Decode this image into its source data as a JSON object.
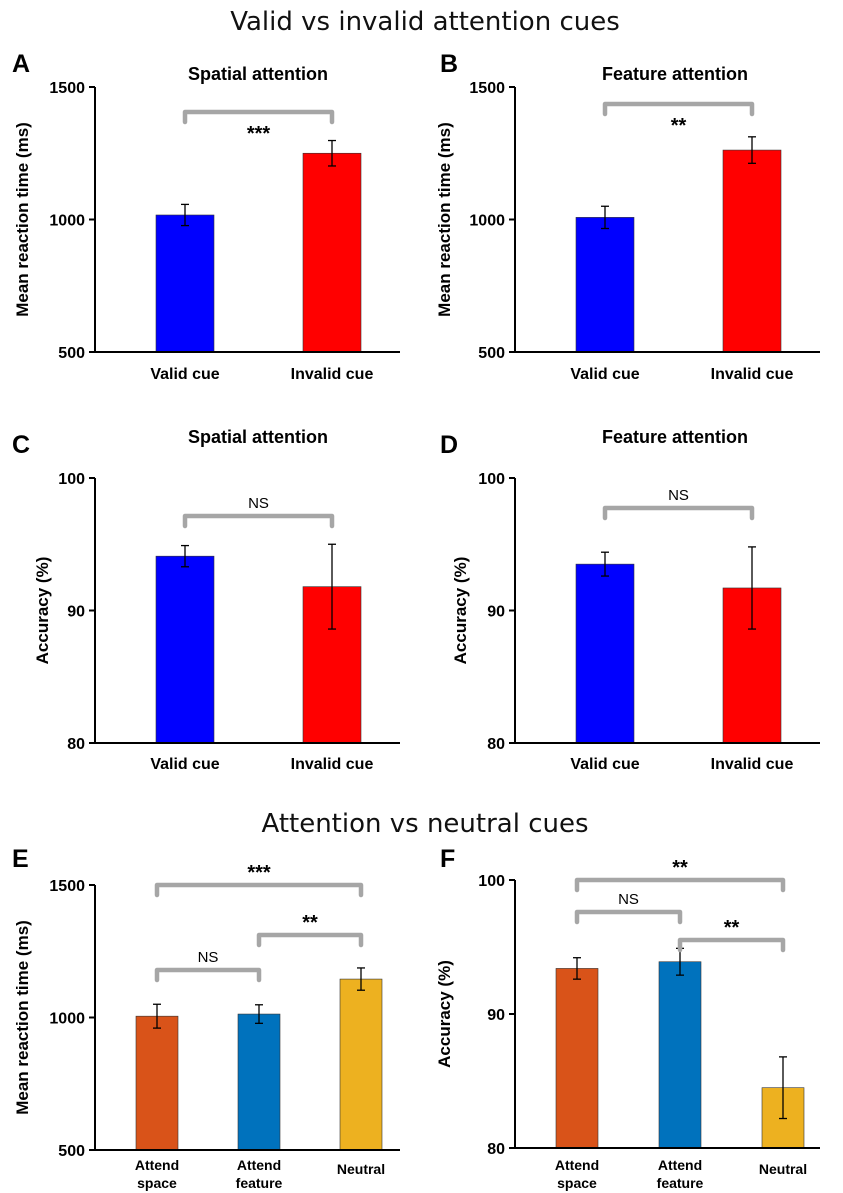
{
  "figure": {
    "section_titles": [
      "Valid vs invalid attention cues",
      "Attention vs neutral cues"
    ]
  },
  "chart_data": [
    {
      "panel": "A",
      "type": "bar",
      "title": "Spatial attention",
      "xlabel": "",
      "ylabel": "Mean reaction time (ms)",
      "ylim": [
        500,
        1500
      ],
      "yticks": [
        500,
        1000,
        1500
      ],
      "grid": false,
      "categories": [
        "Valid cue",
        "Invalid cue"
      ],
      "values": [
        1017,
        1250
      ],
      "errors": [
        40,
        48
      ],
      "colors": [
        "#0000ff",
        "#ff0000"
      ],
      "comparisons": [
        {
          "from": 0,
          "to": 1,
          "label": "***",
          "level": 0
        }
      ]
    },
    {
      "panel": "B",
      "type": "bar",
      "title": "Feature attention",
      "xlabel": "",
      "ylabel": "Mean reaction time (ms)",
      "ylim": [
        500,
        1500
      ],
      "yticks": [
        500,
        1000,
        1500
      ],
      "grid": false,
      "categories": [
        "Valid cue",
        "Invalid cue"
      ],
      "values": [
        1008,
        1262
      ],
      "errors": [
        42,
        50
      ],
      "colors": [
        "#0000ff",
        "#ff0000"
      ],
      "comparisons": [
        {
          "from": 0,
          "to": 1,
          "label": "**",
          "level": 0
        }
      ]
    },
    {
      "panel": "C",
      "type": "bar",
      "title": "Spatial attention",
      "xlabel": "",
      "ylabel": "Accuracy (%)",
      "ylim": [
        80,
        100
      ],
      "yticks": [
        80,
        90,
        100
      ],
      "grid": false,
      "categories": [
        "Valid cue",
        "Invalid cue"
      ],
      "values": [
        94.1,
        91.8
      ],
      "errors": [
        0.8,
        3.2
      ],
      "colors": [
        "#0000ff",
        "#ff0000"
      ],
      "comparisons": [
        {
          "from": 0,
          "to": 1,
          "label": "NS",
          "level": 0
        }
      ]
    },
    {
      "panel": "D",
      "type": "bar",
      "title": "Feature attention",
      "xlabel": "",
      "ylabel": "Accuracy (%)",
      "ylim": [
        80,
        100
      ],
      "yticks": [
        80,
        90,
        100
      ],
      "grid": false,
      "categories": [
        "Valid cue",
        "Invalid cue"
      ],
      "values": [
        93.5,
        91.7
      ],
      "errors": [
        0.9,
        3.1
      ],
      "colors": [
        "#0000ff",
        "#ff0000"
      ],
      "comparisons": [
        {
          "from": 0,
          "to": 1,
          "label": "NS",
          "level": 0
        }
      ]
    },
    {
      "panel": "E",
      "type": "bar",
      "title": "",
      "xlabel": "",
      "ylabel": "Mean reaction time (ms)",
      "ylim": [
        500,
        1500
      ],
      "yticks": [
        500,
        1000,
        1500
      ],
      "grid": false,
      "categories": [
        "Attend space",
        "Attend feature",
        "Neutral"
      ],
      "values": [
        1005,
        1013,
        1145
      ],
      "errors": [
        45,
        35,
        42
      ],
      "colors": [
        "#d95319",
        "#0072bd",
        "#edb120"
      ],
      "comparisons": [
        {
          "from": 0,
          "to": 2,
          "label": "***",
          "level": 2
        },
        {
          "from": 1,
          "to": 2,
          "label": "**",
          "level": 1
        },
        {
          "from": 0,
          "to": 1,
          "label": "NS",
          "level": 0
        }
      ]
    },
    {
      "panel": "F",
      "type": "bar",
      "title": "",
      "xlabel": "",
      "ylabel": "Accuracy (%)",
      "ylim": [
        80,
        100
      ],
      "yticks": [
        80,
        90,
        100
      ],
      "grid": false,
      "categories": [
        "Attend space",
        "Attend feature",
        "Neutral"
      ],
      "values": [
        93.4,
        93.9,
        84.5
      ],
      "errors": [
        0.8,
        1.0,
        2.3
      ],
      "colors": [
        "#d95319",
        "#0072bd",
        "#edb120"
      ],
      "comparisons": [
        {
          "from": 0,
          "to": 2,
          "label": "**",
          "level": 2
        },
        {
          "from": 0,
          "to": 1,
          "label": "NS",
          "level": 1
        },
        {
          "from": 1,
          "to": 2,
          "label": "**",
          "level": 0
        }
      ]
    }
  ]
}
